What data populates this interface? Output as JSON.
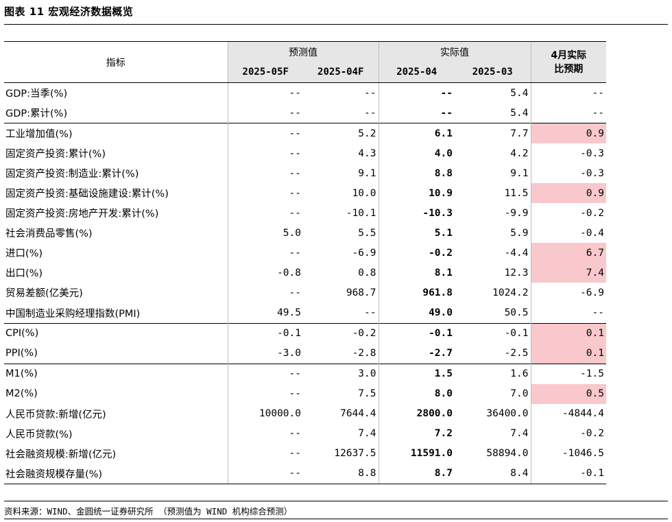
{
  "title": "图表 11  宏观经济数据概览",
  "header": {
    "indicator": "指标",
    "forecast_group": "预测值",
    "actual_group": "实际值",
    "comparison": "4月实际比预期",
    "cols": [
      "2025-05F",
      "2025-04F",
      "2025-04",
      "2025-03"
    ]
  },
  "rows": [
    {
      "name": "GDP:当季(%)",
      "f05": "--",
      "f04": "--",
      "a04": "--",
      "a03": "5.4",
      "diff": "--",
      "hl": false,
      "group_start": false
    },
    {
      "name": "GDP:累计(%)",
      "f05": "--",
      "f04": "--",
      "a04": "--",
      "a03": "5.4",
      "diff": "--",
      "hl": false,
      "group_start": false
    },
    {
      "name": "工业增加值(%)",
      "f05": "--",
      "f04": "5.2",
      "a04": "6.1",
      "a03": "7.7",
      "diff": "0.9",
      "hl": true,
      "group_start": true
    },
    {
      "name": "固定资产投资:累计(%)",
      "f05": "--",
      "f04": "4.3",
      "a04": "4.0",
      "a03": "4.2",
      "diff": "-0.3",
      "hl": false,
      "group_start": false
    },
    {
      "name": "固定资产投资:制造业:累计(%)",
      "f05": "--",
      "f04": "9.1",
      "a04": "8.8",
      "a03": "9.1",
      "diff": "-0.3",
      "hl": false,
      "group_start": false
    },
    {
      "name": "固定资产投资:基础设施建设:累计(%)",
      "f05": "--",
      "f04": "10.0",
      "a04": "10.9",
      "a03": "11.5",
      "diff": "0.9",
      "hl": true,
      "group_start": false
    },
    {
      "name": "固定资产投资:房地产开发:累计(%)",
      "f05": "--",
      "f04": "-10.1",
      "a04": "-10.3",
      "a03": "-9.9",
      "diff": "-0.2",
      "hl": false,
      "group_start": false
    },
    {
      "name": "社会消费品零售(%)",
      "f05": "5.0",
      "f04": "5.5",
      "a04": "5.1",
      "a03": "5.9",
      "diff": "-0.4",
      "hl": false,
      "group_start": false
    },
    {
      "name": "进口(%)",
      "f05": "--",
      "f04": "-6.9",
      "a04": "-0.2",
      "a03": "-4.4",
      "diff": "6.7",
      "hl": true,
      "group_start": false
    },
    {
      "name": "出口(%)",
      "f05": "-0.8",
      "f04": "0.8",
      "a04": "8.1",
      "a03": "12.3",
      "diff": "7.4",
      "hl": true,
      "group_start": false
    },
    {
      "name": "贸易差额(亿美元)",
      "f05": "--",
      "f04": "968.7",
      "a04": "961.8",
      "a03": "1024.2",
      "diff": "-6.9",
      "hl": false,
      "group_start": false
    },
    {
      "name": "中国制造业采购经理指数(PMI)",
      "f05": "49.5",
      "f04": "--",
      "a04": "49.0",
      "a03": "50.5",
      "diff": "--",
      "hl": false,
      "group_start": false
    },
    {
      "name": "CPI(%)",
      "f05": "-0.1",
      "f04": "-0.2",
      "a04": "-0.1",
      "a03": "-0.1",
      "diff": "0.1",
      "hl": true,
      "group_start": true
    },
    {
      "name": "PPI(%)",
      "f05": "-3.0",
      "f04": "-2.8",
      "a04": "-2.7",
      "a03": "-2.5",
      "diff": "0.1",
      "hl": true,
      "group_start": false
    },
    {
      "name": "M1(%)",
      "f05": "--",
      "f04": "3.0",
      "a04": "1.5",
      "a03": "1.6",
      "diff": "-1.5",
      "hl": false,
      "group_start": true
    },
    {
      "name": "M2(%)",
      "f05": "--",
      "f04": "7.5",
      "a04": "8.0",
      "a03": "7.0",
      "diff": "0.5",
      "hl": true,
      "group_start": false
    },
    {
      "name": "人民币贷款:新增(亿元)",
      "f05": "10000.0",
      "f04": "7644.4",
      "a04": "2800.0",
      "a03": "36400.0",
      "diff": "-4844.4",
      "hl": false,
      "group_start": false
    },
    {
      "name": "人民币贷款(%)",
      "f05": "--",
      "f04": "7.4",
      "a04": "7.2",
      "a03": "7.4",
      "diff": "-0.2",
      "hl": false,
      "group_start": false
    },
    {
      "name": "社会融资规模:新增(亿元)",
      "f05": "--",
      "f04": "12637.5",
      "a04": "11591.0",
      "a03": "58894.0",
      "diff": "-1046.5",
      "hl": false,
      "group_start": false
    },
    {
      "name": "社会融资规模存量(%)",
      "f05": "--",
      "f04": "8.8",
      "a04": "8.7",
      "a03": "8.4",
      "diff": "-0.1",
      "hl": false,
      "group_start": false
    }
  ],
  "highlight_color": "#f8c8cc",
  "source": "资料来源：WIND、金圆统一证券研究所 （预测值为 WIND 机构综合预测）"
}
